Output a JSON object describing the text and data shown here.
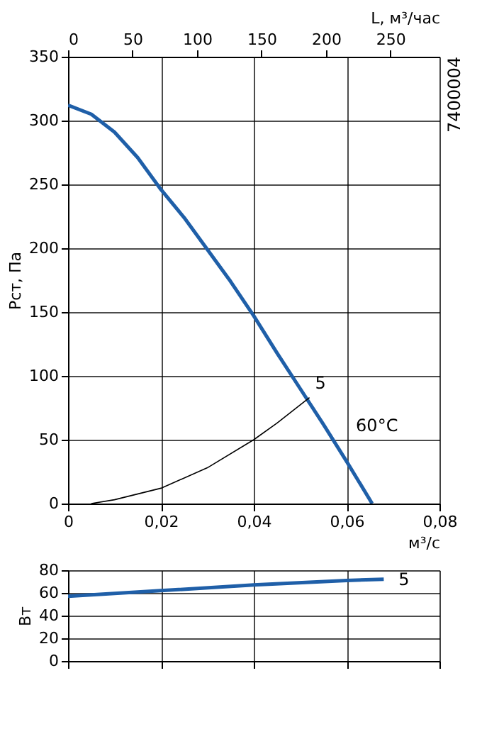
{
  "chart_data": [
    {
      "type": "line",
      "xlabel": "м³/с",
      "ylabel": "Pст, Па",
      "x2label": "L, м³/час",
      "series": [
        {
          "color": "#1f5fa8",
          "x": [
            0,
            0.005,
            0.01,
            0.015,
            0.02,
            0.025,
            0.03,
            0.035,
            0.04,
            0.045,
            0.05,
            0.055,
            0.06,
            0.0655
          ],
          "values": [
            312,
            305,
            291,
            271,
            246,
            224,
            199,
            174,
            147,
            118,
            90,
            62,
            33,
            0
          ]
        },
        {
          "color": "#000000",
          "x": [
            0.005,
            0.01,
            0.02,
            0.03,
            0.04,
            0.045,
            0.052
          ],
          "values": [
            0,
            3,
            12,
            28,
            50,
            63,
            83
          ]
        }
      ],
      "xlim": [
        0,
        0.08
      ],
      "ylim": [
        0,
        350
      ],
      "xticks": [
        0,
        {
          "value": 0.02,
          "label": "0,02"
        },
        {
          "value": 0.04,
          "label": "0,04"
        },
        {
          "value": 0.06,
          "label": "0,06"
        },
        {
          "value": 0.08,
          "label": "0,08"
        }
      ],
      "yticks": [
        0,
        50,
        100,
        150,
        200,
        250,
        300,
        350
      ],
      "x2lim": [
        0,
        288
      ],
      "x2ticks": [
        0,
        50,
        100,
        150,
        200,
        250
      ],
      "grid": true,
      "annotations": [
        "5",
        "60°C",
        "7400004"
      ]
    },
    {
      "type": "line",
      "ylabel": "Вт",
      "series": [
        {
          "color": "#1f5fa8",
          "x": [
            0,
            0.02,
            0.04,
            0.06,
            0.068
          ],
          "values": [
            57,
            62,
            67,
            71,
            72
          ]
        }
      ],
      "xlim": [
        0,
        0.08
      ],
      "ylim": [
        0,
        80
      ],
      "xticks": [
        0,
        0.02,
        0.04,
        0.06,
        0.08
      ],
      "yticks": [
        0,
        20,
        40,
        60,
        80
      ],
      "tick_labels": "y",
      "grid": true,
      "annotations": [
        "5"
      ]
    }
  ]
}
